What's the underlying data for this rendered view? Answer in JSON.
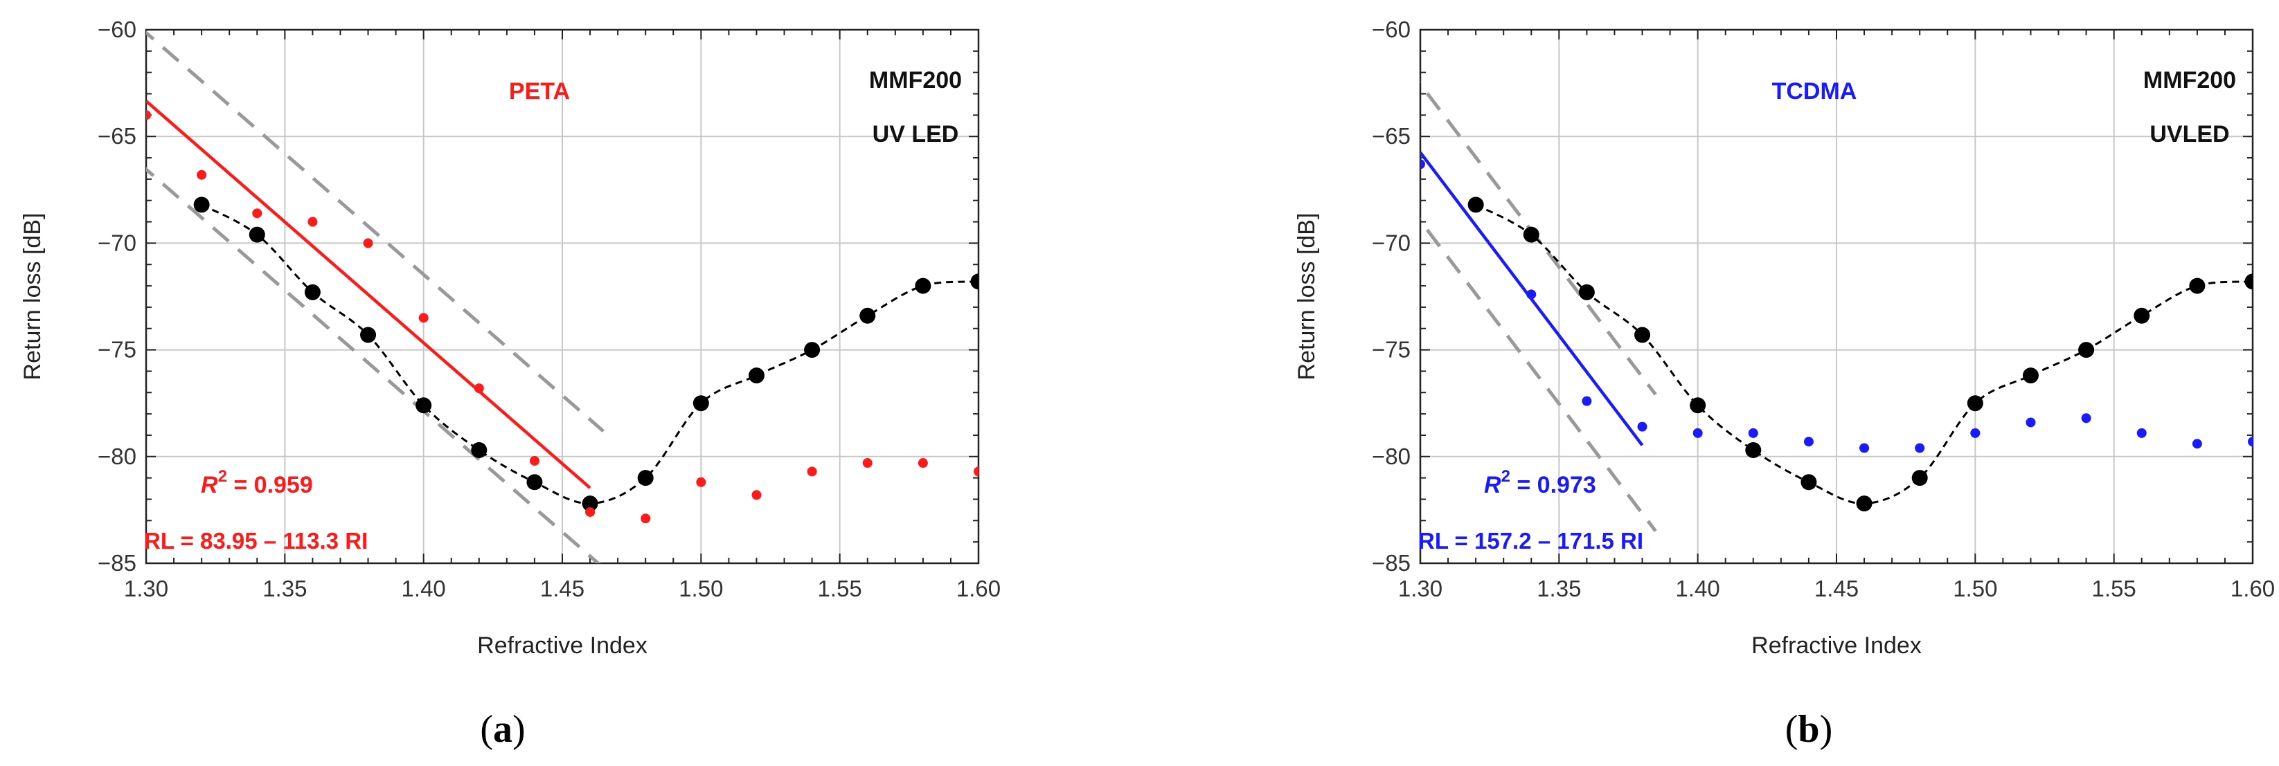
{
  "chart_data": [
    {
      "type": "scatter",
      "panel_label": "(a)",
      "panel_letter": "a",
      "panel_paren_open": "(",
      "panel_paren_close": ")",
      "xlabel": "Refractive Index",
      "ylabel": "Return loss [dB]",
      "xlim": [
        1.3,
        1.6
      ],
      "ylim": [
        -85,
        -60
      ],
      "xticks": [
        1.3,
        1.35,
        1.4,
        1.45,
        1.5,
        1.55,
        1.6
      ],
      "xtick_labels": [
        "1.30",
        "1.35",
        "1.40",
        "1.45",
        "1.50",
        "1.55",
        "1.60"
      ],
      "yticks": [
        -85,
        -80,
        -75,
        -70,
        -65,
        -60
      ],
      "ytick_labels": [
        "−85",
        "−80",
        "−75",
        "−70",
        "−65",
        "−60"
      ],
      "grid": true,
      "annotations": {
        "material": "PETA",
        "fiber": "MMF200",
        "source": "UV LED",
        "r2_symbol": "R",
        "r2_exp": "2",
        "r2_value": " = 0.959",
        "equation": "RL = 83.95 – 113.3 RI"
      },
      "colors": {
        "accent": "#ff1a1a",
        "reference": "#000000",
        "band": "#999999"
      },
      "reference_series": {
        "name": "MMF200 reference",
        "x": [
          1.32,
          1.34,
          1.36,
          1.38,
          1.4,
          1.42,
          1.44,
          1.46,
          1.48,
          1.5,
          1.52,
          1.54,
          1.56,
          1.58,
          1.6
        ],
        "y": [
          -68.2,
          -69.6,
          -72.3,
          -74.3,
          -77.6,
          -79.7,
          -81.2,
          -82.2,
          -81.0,
          -77.5,
          -76.2,
          -75.0,
          -73.4,
          -72.0,
          -71.8
        ]
      },
      "measured_series": {
        "name": "PETA",
        "x": [
          1.3,
          1.32,
          1.34,
          1.36,
          1.38,
          1.4,
          1.42,
          1.44,
          1.46,
          1.48,
          1.5,
          1.52,
          1.54,
          1.56,
          1.58,
          1.6
        ],
        "y": [
          -64.0,
          -66.8,
          -68.6,
          -69.0,
          -70.0,
          -73.5,
          -76.8,
          -80.2,
          -82.6,
          -82.9,
          -81.2,
          -81.8,
          -80.7,
          -80.3,
          -80.3,
          -80.7
        ]
      },
      "fit": {
        "intercept": 83.95,
        "slope": -113.3,
        "x_range": [
          1.3,
          1.46
        ],
        "band_offset": 3.2
      }
    },
    {
      "type": "scatter",
      "panel_label": "(b)",
      "panel_letter": "b",
      "panel_paren_open": "(",
      "panel_paren_close": ")",
      "xlabel": "Refractive Index",
      "ylabel": "Return loss [dB]",
      "xlim": [
        1.3,
        1.6
      ],
      "ylim": [
        -85,
        -60
      ],
      "xticks": [
        1.3,
        1.35,
        1.4,
        1.45,
        1.5,
        1.55,
        1.6
      ],
      "xtick_labels": [
        "1.30",
        "1.35",
        "1.40",
        "1.45",
        "1.50",
        "1.55",
        "1.60"
      ],
      "yticks": [
        -85,
        -80,
        -75,
        -70,
        -65,
        -60
      ],
      "ytick_labels": [
        "−85",
        "−80",
        "−75",
        "−70",
        "−65",
        "−60"
      ],
      "grid": true,
      "annotations": {
        "material": "TCDMA",
        "fiber": "MMF200",
        "source": "UVLED",
        "r2_symbol": "R",
        "r2_exp": "2",
        "r2_value": " = 0.973",
        "equation": "RL = 157.2 – 171.5 RI"
      },
      "colors": {
        "accent": "#1a1aff",
        "reference": "#000000",
        "band": "#999999"
      },
      "reference_series": {
        "name": "MMF200 reference",
        "x": [
          1.32,
          1.34,
          1.36,
          1.38,
          1.4,
          1.42,
          1.44,
          1.46,
          1.48,
          1.5,
          1.52,
          1.54,
          1.56,
          1.58,
          1.6
        ],
        "y": [
          -68.2,
          -69.6,
          -72.3,
          -74.3,
          -77.6,
          -79.7,
          -81.2,
          -82.2,
          -81.0,
          -77.5,
          -76.2,
          -75.0,
          -73.4,
          -72.0,
          -71.8
        ]
      },
      "measured_series": {
        "name": "TCDMA",
        "x": [
          1.3,
          1.34,
          1.36,
          1.38,
          1.4,
          1.42,
          1.44,
          1.46,
          1.48,
          1.5,
          1.52,
          1.54,
          1.56,
          1.58,
          1.6
        ],
        "y": [
          -66.3,
          -72.4,
          -77.4,
          -78.6,
          -78.9,
          -78.9,
          -79.3,
          -79.6,
          -79.6,
          -78.9,
          -78.4,
          -78.2,
          -78.9,
          -79.4,
          -79.3
        ]
      },
      "fit": {
        "intercept": 157.2,
        "slope": -171.5,
        "x_range": [
          1.3,
          1.38
        ],
        "band_offset": 3.2
      }
    }
  ]
}
